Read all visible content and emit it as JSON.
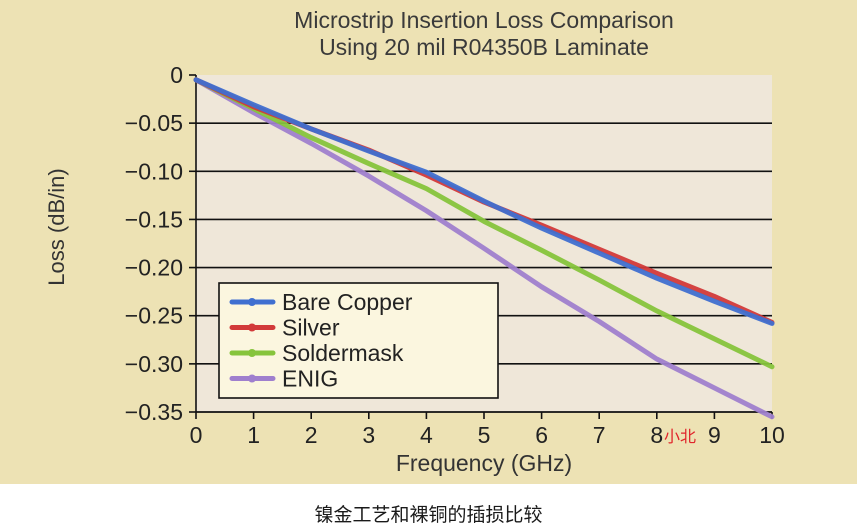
{
  "chart_data": {
    "type": "line",
    "title": [
      "Microstrip Insertion Loss Comparison",
      "Using 20 mil R04350B Laminate"
    ],
    "xlabel": "Frequency (GHz)",
    "ylabel": "Loss (dB/in)",
    "xlim": [
      0,
      10
    ],
    "ylim": [
      -0.35,
      0
    ],
    "xticks": [
      0,
      1,
      2,
      3,
      4,
      5,
      6,
      7,
      8,
      9,
      10
    ],
    "yticks": [
      0,
      -0.05,
      -0.1,
      -0.15,
      -0.2,
      -0.25,
      -0.3,
      -0.35
    ],
    "ytick_labels": [
      "0",
      "−0.05",
      "−0.10",
      "−0.15",
      "−0.20",
      "−0.25",
      "−0.30",
      "−0.35"
    ],
    "grid": "horizontal",
    "legend_position": "bottom-left",
    "x": [
      0,
      1,
      2,
      3,
      4,
      5,
      6,
      7,
      8,
      9,
      10
    ],
    "series": [
      {
        "name": "Bare Copper",
        "color": "#3f6fd0",
        "values": [
          -0.005,
          -0.031,
          -0.056,
          -0.079,
          -0.101,
          -0.131,
          -0.159,
          -0.185,
          -0.211,
          -0.235,
          -0.258
        ]
      },
      {
        "name": "Silver",
        "color": "#d23a3a",
        "values": [
          -0.005,
          -0.033,
          -0.056,
          -0.078,
          -0.104,
          -0.132,
          -0.156,
          -0.181,
          -0.206,
          -0.23,
          -0.257
        ]
      },
      {
        "name": "Soldermask",
        "color": "#86c43c",
        "values": [
          -0.005,
          -0.035,
          -0.065,
          -0.092,
          -0.118,
          -0.152,
          -0.182,
          -0.213,
          -0.245,
          -0.274,
          -0.303
        ]
      },
      {
        "name": "ENIG",
        "color": "#9f7fce",
        "values": [
          -0.005,
          -0.039,
          -0.071,
          -0.105,
          -0.141,
          -0.18,
          -0.22,
          -0.256,
          -0.295,
          -0.325,
          -0.355
        ]
      }
    ]
  },
  "watermark": "小北",
  "caption": "镍金工艺和裸铜的插损比较"
}
